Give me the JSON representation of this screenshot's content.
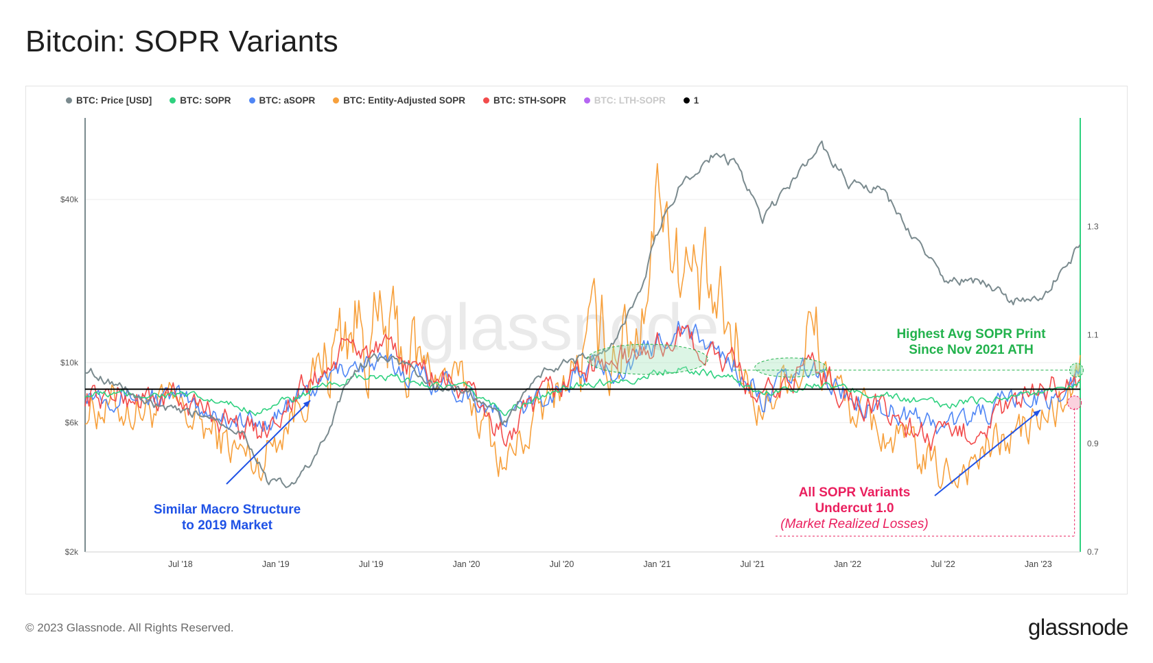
{
  "title": "Bitcoin: SOPR Variants",
  "legend": [
    {
      "label": "BTC: Price [USD]",
      "color": "#7a8a8e",
      "active": true
    },
    {
      "label": "BTC: SOPR",
      "color": "#2ed17f",
      "active": true
    },
    {
      "label": "BTC: aSOPR",
      "color": "#4f86f5",
      "active": true
    },
    {
      "label": "BTC: Entity-Adjusted SOPR",
      "color": "#f7a03c",
      "active": true
    },
    {
      "label": "BTC: STH-SOPR",
      "color": "#f24b4b",
      "active": true
    },
    {
      "label": "BTC: LTH-SOPR",
      "color": "#b566f2",
      "active": false
    },
    {
      "label": "1",
      "color": "#000000",
      "active": true
    }
  ],
  "annotations": {
    "blue": {
      "line1": "Similar Macro Structure",
      "line2": "to 2019 Market"
    },
    "green": {
      "line1": "Highest Avg SOPR Print",
      "line2": "Since Nov 2021 ATH"
    },
    "red": {
      "line1": "All SOPR Variants",
      "line2": "Undercut 1.0",
      "line3": "(Market Realized Losses)"
    }
  },
  "footer": {
    "copyright": "© 2023 Glassnode. All Rights Reserved.",
    "brand": "glassnode"
  },
  "watermark": "glassnode",
  "chart_data": {
    "type": "line",
    "x_ticks": [
      "Jul '18",
      "Jan '19",
      "Jul '19",
      "Jan '20",
      "Jul '20",
      "Jan '21",
      "Jul '21",
      "Jan '22",
      "Jul '22",
      "Jan '23"
    ],
    "y_left": {
      "ticks": [
        "$2k",
        "$6k",
        "$10k",
        "$40k"
      ],
      "scale": "log"
    },
    "y_right": {
      "ticks": [
        "0.7",
        "0.9",
        "1.1",
        "1.3"
      ],
      "range": [
        0.7,
        1.5
      ]
    },
    "reference_line": 1.0,
    "series": [
      {
        "name": "BTC: Price [USD]",
        "axis": "left",
        "x": [
          2018.0,
          2018.17,
          2018.33,
          2018.5,
          2018.67,
          2018.83,
          2018.96,
          2019.1,
          2019.25,
          2019.42,
          2019.5,
          2019.67,
          2019.83,
          2020.0,
          2020.2,
          2020.42,
          2020.58,
          2020.75,
          2020.92,
          2021.04,
          2021.12,
          2021.28,
          2021.4,
          2021.55,
          2021.7,
          2021.86,
          2022.0,
          2022.17,
          2022.33,
          2022.5,
          2022.7,
          2022.85,
          2023.0,
          2023.17,
          2023.22
        ],
        "values": [
          9500,
          8300,
          7000,
          6500,
          6400,
          5500,
          3600,
          3500,
          5000,
          9500,
          10500,
          10000,
          8200,
          7800,
          6000,
          9500,
          10200,
          11000,
          18000,
          35000,
          45000,
          58000,
          55000,
          33000,
          45000,
          64000,
          46000,
          43000,
          30000,
          20000,
          20000,
          17000,
          16500,
          24000,
          28000
        ]
      },
      {
        "name": "BTC: SOPR",
        "axis": "right",
        "x": [
          2018.0,
          2018.5,
          2018.9,
          2019.4,
          2019.6,
          2020.0,
          2020.2,
          2020.6,
          2020.9,
          2021.1,
          2021.4,
          2021.55,
          2021.8,
          2022.0,
          2022.5,
          2022.9,
          2023.1,
          2023.22
        ],
        "values": [
          0.99,
          0.99,
          0.96,
          1.02,
          1.02,
          1.0,
          0.96,
          1.01,
          1.02,
          1.04,
          1.02,
          0.99,
          1.01,
          1.0,
          0.97,
          0.99,
          1.0,
          1.01
        ]
      },
      {
        "name": "BTC: aSOPR",
        "axis": "right",
        "x": [
          2018.0,
          2018.5,
          2018.9,
          2019.4,
          2019.6,
          2020.0,
          2020.2,
          2020.6,
          2020.9,
          2021.1,
          2021.4,
          2021.55,
          2021.8,
          2022.0,
          2022.5,
          2022.9,
          2023.1,
          2023.22
        ],
        "values": [
          1.0,
          0.98,
          0.93,
          1.05,
          1.04,
          1.0,
          0.94,
          1.03,
          1.05,
          1.12,
          1.05,
          0.98,
          1.04,
          0.99,
          0.93,
          0.98,
          0.99,
          1.02
        ]
      },
      {
        "name": "BTC: Entity-Adjusted SOPR",
        "axis": "right",
        "x": [
          2018.0,
          2018.5,
          2018.9,
          2019.4,
          2019.6,
          2020.0,
          2020.2,
          2020.6,
          2020.9,
          2021.02,
          2021.1,
          2021.4,
          2021.55,
          2021.8,
          2022.0,
          2022.5,
          2022.9,
          2023.1,
          2023.22
        ],
        "values": [
          0.97,
          0.96,
          0.86,
          1.13,
          1.08,
          1.0,
          0.86,
          1.06,
          1.12,
          1.4,
          1.25,
          1.08,
          0.96,
          1.1,
          0.97,
          0.84,
          0.92,
          0.96,
          1.03
        ]
      },
      {
        "name": "BTC: STH-SOPR",
        "axis": "right",
        "x": [
          2018.0,
          2018.5,
          2018.9,
          2019.4,
          2019.6,
          2020.0,
          2020.2,
          2020.6,
          2020.9,
          2021.1,
          2021.4,
          2021.55,
          2021.8,
          2022.0,
          2022.5,
          2022.9,
          2023.1,
          2023.22
        ],
        "values": [
          0.99,
          0.98,
          0.92,
          1.08,
          1.06,
          1.0,
          0.91,
          1.04,
          1.06,
          1.1,
          1.04,
          0.97,
          1.05,
          0.99,
          0.9,
          0.97,
          1.01,
          1.01
        ]
      }
    ]
  }
}
